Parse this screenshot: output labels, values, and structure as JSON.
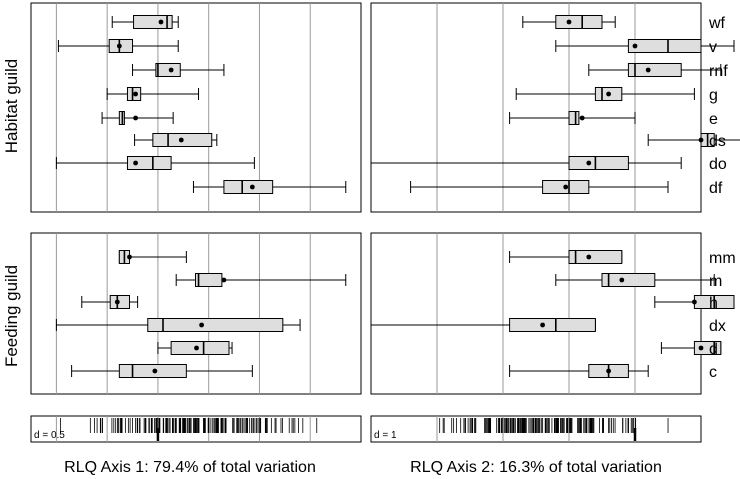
{
  "chart_data": [
    {
      "type": "boxplot",
      "panel": "habitat-axis1",
      "group_label": "Habitat guild",
      "grid_label": "d = 0.5",
      "xlim": [
        -1.25,
        2.0
      ],
      "grid_step": 0.5,
      "categories": [
        "wf",
        "v",
        "rnf",
        "g",
        "e",
        "ds",
        "do",
        "df"
      ],
      "series": [
        {
          "category": "wf",
          "whisker_low": -0.45,
          "q1": -0.24,
          "median": 0.09,
          "q3": 0.14,
          "whisker_high": 0.2,
          "mean": 0.03
        },
        {
          "category": "v",
          "whisker_low": -0.98,
          "q1": -0.48,
          "median": -0.38,
          "q3": -0.25,
          "whisker_high": 0.2,
          "mean": -0.38
        },
        {
          "category": "rnf",
          "whisker_low": -0.25,
          "q1": -0.02,
          "median": 0.0,
          "q3": 0.22,
          "whisker_high": 0.65,
          "mean": 0.13
        },
        {
          "category": "g",
          "whisker_low": -0.5,
          "q1": -0.3,
          "median": -0.25,
          "q3": -0.17,
          "whisker_high": 0.4,
          "mean": -0.22
        },
        {
          "category": "e",
          "whisker_low": -0.55,
          "q1": -0.38,
          "median": -0.35,
          "q3": -0.33,
          "whisker_high": 0.15,
          "mean": -0.22
        },
        {
          "category": "ds",
          "whisker_low": -0.23,
          "q1": -0.05,
          "median": 0.1,
          "q3": 0.53,
          "whisker_high": 0.58,
          "mean": 0.23
        },
        {
          "category": "do",
          "whisker_low": -1.0,
          "q1": -0.3,
          "median": -0.05,
          "q3": 0.13,
          "whisker_high": 0.95,
          "mean": -0.22
        },
        {
          "category": "df",
          "whisker_low": 0.35,
          "q1": 0.65,
          "median": 0.83,
          "q3": 1.13,
          "whisker_high": 1.85,
          "mean": 0.93
        }
      ]
    },
    {
      "type": "boxplot",
      "panel": "habitat-axis2",
      "group_label": "Habitat guild",
      "grid_label": "d = 1",
      "xlim": [
        -3.0,
        2.0
      ],
      "grid_step": 1,
      "categories": [
        "wf",
        "v",
        "rnf",
        "g",
        "e",
        "ds",
        "do",
        "df"
      ],
      "series": [
        {
          "category": "wf",
          "whisker_low": -0.7,
          "q1": -0.2,
          "median": 0.2,
          "q3": 0.5,
          "whisker_high": 0.7,
          "mean": 0.0
        },
        {
          "category": "v",
          "whisker_low": -0.2,
          "q1": 0.9,
          "median": 1.5,
          "q3": 2.0,
          "whisker_high": 2.5,
          "mean": 1.0
        },
        {
          "category": "rnf",
          "whisker_low": 0.3,
          "q1": 0.9,
          "median": 1.0,
          "q3": 1.7,
          "whisker_high": 2.3,
          "mean": 1.2
        },
        {
          "category": "g",
          "whisker_low": -0.8,
          "q1": 0.4,
          "median": 0.5,
          "q3": 0.8,
          "whisker_high": 1.9,
          "mean": 0.6
        },
        {
          "category": "e",
          "whisker_low": -0.9,
          "q1": 0.0,
          "median": 0.1,
          "q3": 0.15,
          "whisker_high": 1.0,
          "mean": 0.2
        },
        {
          "category": "ds",
          "whisker_low": 1.2,
          "q1": 2.0,
          "median": 2.1,
          "q3": 2.2,
          "whisker_high": 2.6,
          "mean": 2.0
        },
        {
          "category": "do",
          "whisker_low": -3.0,
          "q1": 0.0,
          "median": 0.4,
          "q3": 0.9,
          "whisker_high": 1.7,
          "mean": 0.3
        },
        {
          "category": "df",
          "whisker_low": -2.4,
          "q1": -0.4,
          "median": 0.0,
          "q3": 0.3,
          "whisker_high": 1.5,
          "mean": -0.05
        }
      ]
    },
    {
      "type": "boxplot",
      "panel": "feeding-axis1",
      "group_label": "Feeding guild",
      "xlim": [
        -1.25,
        2.0
      ],
      "grid_step": 0.5,
      "categories": [
        "mm",
        "m",
        "h",
        "dx",
        "d",
        "c"
      ],
      "series": [
        {
          "category": "mm",
          "whisker_low": -0.38,
          "q1": -0.38,
          "median": -0.33,
          "q3": -0.28,
          "whisker_high": 0.28,
          "mean": -0.28
        },
        {
          "category": "m",
          "whisker_low": 0.18,
          "q1": 0.37,
          "median": 0.4,
          "q3": 0.63,
          "whisker_high": 1.85,
          "mean": 0.65
        },
        {
          "category": "h",
          "whisker_low": -0.75,
          "q1": -0.47,
          "median": -0.4,
          "q3": -0.28,
          "whisker_high": -0.2,
          "mean": -0.4
        },
        {
          "category": "dx",
          "whisker_low": -1.0,
          "q1": -0.1,
          "median": 0.05,
          "q3": 1.23,
          "whisker_high": 1.4,
          "mean": 0.43
        },
        {
          "category": "d",
          "whisker_low": 0.0,
          "q1": 0.13,
          "median": 0.45,
          "q3": 0.7,
          "whisker_high": 0.73,
          "mean": 0.38
        },
        {
          "category": "c",
          "whisker_low": -0.85,
          "q1": -0.38,
          "median": -0.25,
          "q3": 0.28,
          "whisker_high": 0.93,
          "mean": -0.03
        }
      ]
    },
    {
      "type": "boxplot",
      "panel": "feeding-axis2",
      "group_label": "Feeding guild",
      "xlim": [
        -3.0,
        2.0
      ],
      "grid_step": 1,
      "categories": [
        "mm",
        "m",
        "h",
        "dx",
        "d",
        "c"
      ],
      "series": [
        {
          "category": "mm",
          "whisker_low": -0.9,
          "q1": 0.0,
          "median": 0.1,
          "q3": 0.8,
          "whisker_high": 0.8,
          "mean": 0.3
        },
        {
          "category": "m",
          "whisker_low": -0.2,
          "q1": 0.5,
          "median": 0.6,
          "q3": 1.3,
          "whisker_high": 2.2,
          "mean": 0.8
        },
        {
          "category": "h",
          "whisker_low": 1.3,
          "q1": 1.9,
          "median": 2.2,
          "q3": 2.5,
          "whisker_high": 2.5,
          "mean": 1.9
        },
        {
          "category": "dx",
          "whisker_low": -3.0,
          "q1": -0.9,
          "median": -0.2,
          "q3": 0.4,
          "whisker_high": 0.4,
          "mean": -0.4
        },
        {
          "category": "d",
          "whisker_low": 1.4,
          "q1": 1.9,
          "median": 2.2,
          "q3": 2.3,
          "whisker_high": 2.3,
          "mean": 2.0
        },
        {
          "category": "c",
          "whisker_low": -0.9,
          "q1": 0.3,
          "median": 0.6,
          "q3": 0.9,
          "whisker_high": 1.2,
          "mean": 0.6
        }
      ]
    }
  ],
  "rug": [
    {
      "grid_label": "d = 0.5",
      "origin": 0.0,
      "xlim": [
        -1.25,
        2.0
      ],
      "grid_step": 0.5
    },
    {
      "grid_label": "d = 1",
      "origin": 1.0,
      "xlim": [
        -3.0,
        2.0
      ],
      "grid_step": 1
    }
  ],
  "axis_labels": {
    "axis1": "RLQ Axis 1: 79.4% of total variation",
    "axis2": "RLQ Axis 2: 16.3% of total variation"
  },
  "guild_labels": {
    "habitat": "Habitat guild",
    "feeding": "Feeding guild"
  }
}
